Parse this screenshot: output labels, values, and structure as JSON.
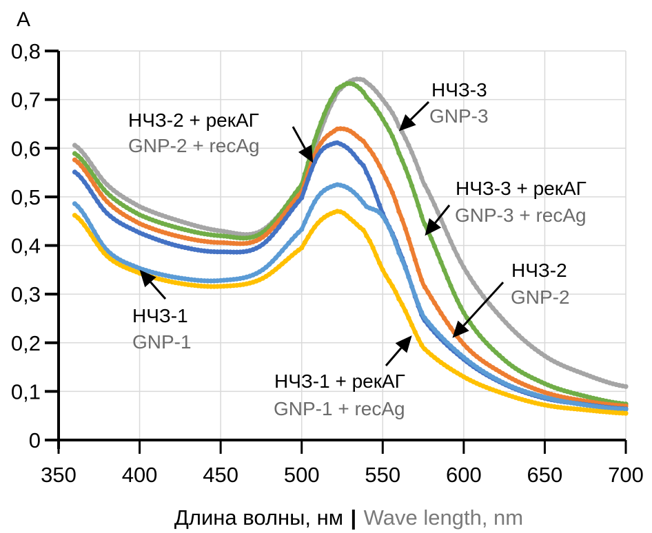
{
  "chart_data": {
    "type": "line",
    "title": "",
    "ylabel": "A",
    "xlabel": {
      "ru": "Длина волны, нм",
      "separator": "|",
      "en": "Wave length, nm"
    },
    "xlim": [
      350,
      700
    ],
    "ylim": [
      0,
      0.8
    ],
    "xticks": [
      "350",
      "400",
      "450",
      "500",
      "550",
      "600",
      "650",
      "700"
    ],
    "xtick_values": [
      350,
      400,
      450,
      500,
      550,
      600,
      650,
      700
    ],
    "yticks": [
      "0",
      "0,1",
      "0,2",
      "0,3",
      "0,4",
      "0,5",
      "0,6",
      "0,7",
      "0,8"
    ],
    "ytick_values": [
      0,
      0.1,
      0.2,
      0.3,
      0.4,
      0.5,
      0.6,
      0.7,
      0.8
    ],
    "grid": true,
    "marker": "dot",
    "x": [
      360,
      380,
      400,
      425,
      450,
      475,
      500,
      510,
      520,
      525,
      530,
      535,
      540,
      550,
      560,
      575,
      600,
      625,
      650,
      675,
      700
    ],
    "series": [
      {
        "name": "GNP-3",
        "name_ru": "НЧЗ-3",
        "color": "#a5a5a5",
        "values": [
          0.606,
          0.525,
          0.48,
          0.45,
          0.43,
          0.43,
          0.52,
          0.62,
          0.7,
          0.725,
          0.738,
          0.742,
          0.735,
          0.7,
          0.645,
          0.53,
          0.355,
          0.245,
          0.173,
          0.135,
          0.11
        ]
      },
      {
        "name": "GNP-3 + recAg",
        "name_ru": "НЧЗ-3 + рекАГ",
        "color": "#70ad47",
        "values": [
          0.589,
          0.508,
          0.463,
          0.435,
          0.42,
          0.425,
          0.525,
          0.635,
          0.71,
          0.728,
          0.733,
          0.725,
          0.705,
          0.66,
          0.59,
          0.45,
          0.262,
          0.165,
          0.116,
          0.09,
          0.074
        ]
      },
      {
        "name": "GNP-2",
        "name_ru": "НЧЗ-2",
        "color": "#ed7d31",
        "values": [
          0.576,
          0.49,
          0.445,
          0.418,
          0.406,
          0.415,
          0.51,
          0.6,
          0.635,
          0.64,
          0.635,
          0.622,
          0.605,
          0.551,
          0.47,
          0.32,
          0.197,
          0.135,
          0.098,
          0.08,
          0.07
        ]
      },
      {
        "name": "GNP-2 + recAg",
        "name_ru": "НЧЗ-2 + рекАГ",
        "color": "#4472c4",
        "values": [
          0.551,
          0.466,
          0.426,
          0.398,
          0.387,
          0.4,
          0.498,
          0.585,
          0.61,
          0.607,
          0.595,
          0.575,
          0.55,
          0.466,
          0.39,
          0.25,
          0.166,
          0.115,
          0.086,
          0.073,
          0.064
        ]
      },
      {
        "name": "GNP-1",
        "name_ru": "НЧЗ-1",
        "color": "#5b9bd5",
        "values": [
          0.486,
          0.39,
          0.353,
          0.333,
          0.328,
          0.348,
          0.433,
          0.5,
          0.523,
          0.523,
          0.515,
          0.5,
          0.48,
          0.46,
          0.385,
          0.255,
          0.17,
          0.117,
          0.088,
          0.072,
          0.063
        ]
      },
      {
        "name": "GNP-1 + recAg",
        "name_ru": "НЧЗ-1 + рекАГ",
        "color": "#ffc000",
        "values": [
          0.462,
          0.378,
          0.343,
          0.322,
          0.316,
          0.331,
          0.395,
          0.446,
          0.468,
          0.468,
          0.455,
          0.44,
          0.42,
          0.35,
          0.29,
          0.19,
          0.13,
          0.095,
          0.072,
          0.062,
          0.055
        ]
      }
    ],
    "annotations": [
      {
        "ru": "НЧЗ-3",
        "en": "GNP-3",
        "series": "GNP-3",
        "points_to": [
          560,
          0.635
        ]
      },
      {
        "ru": "НЧЗ-2 + рекАГ",
        "en": "GNP-2 + recAg",
        "series": "GNP-2 + recAg",
        "points_to": [
          507,
          0.57
        ]
      },
      {
        "ru": "НЧЗ-3 + рекАГ",
        "en": "GNP-3 + recAg",
        "series": "GNP-3 + recAg",
        "points_to": [
          576,
          0.42
        ]
      },
      {
        "ru": "НЧЗ-1",
        "en": "GNP-1",
        "series": "GNP-1",
        "points_to": [
          400,
          0.35
        ]
      },
      {
        "ru": "НЧЗ-2",
        "en": "GNP-2",
        "series": "GNP-2",
        "points_to": [
          593,
          0.21
        ]
      },
      {
        "ru": "НЧЗ-1 + рекАГ",
        "en": "GNP-1 + recAg",
        "series": "GNP-1 + recAg",
        "points_to": [
          568,
          0.215
        ]
      }
    ]
  }
}
